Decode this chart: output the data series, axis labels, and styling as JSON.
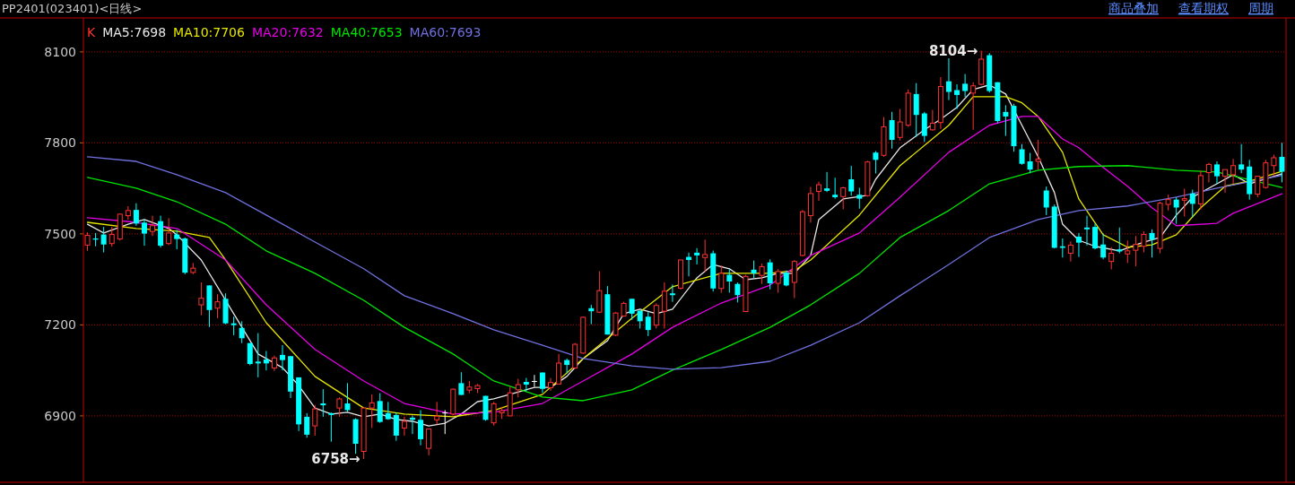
{
  "chart_data": {
    "type": "candlestick",
    "title": "PP2401(023401)<日线>",
    "annotations": [
      "商品叠加",
      "查看期权",
      "周期",
      "8104→",
      "6758→"
    ],
    "categories": [
      null,
      null,
      null,
      null,
      null,
      null,
      null,
      null,
      null,
      null,
      null,
      null,
      null,
      null,
      null,
      null,
      null,
      null,
      null,
      null,
      null,
      null,
      null,
      null,
      null,
      null,
      null,
      null,
      null,
      null,
      null,
      null,
      null,
      null,
      null,
      null,
      null,
      null,
      null,
      null,
      null,
      null,
      null,
      null,
      null,
      null,
      null,
      null,
      null,
      null,
      null,
      null,
      null,
      null,
      null,
      null,
      null,
      null,
      null,
      null,
      null,
      null,
      null,
      null,
      null,
      null,
      null,
      null,
      null,
      null,
      null,
      null,
      null,
      null,
      null,
      null,
      null,
      null,
      null,
      null,
      null,
      null,
      null,
      null,
      null,
      null,
      null,
      null,
      null,
      null,
      null,
      null,
      null,
      null,
      null,
      null,
      null,
      null,
      null,
      null,
      null,
      null,
      null,
      null,
      null,
      null,
      null,
      null,
      null,
      null,
      null,
      null,
      null,
      null,
      null,
      null,
      null,
      null,
      null,
      null,
      null,
      null,
      null,
      null,
      null,
      null,
      null,
      null,
      null,
      null,
      null,
      null,
      null,
      null,
      null,
      null,
      null,
      null,
      null,
      null,
      null,
      null,
      null,
      null,
      null,
      null,
      null,
      null
    ],
    "ylim": [
      6681,
      8206
    ],
    "yticks": [
      6900,
      7200,
      7500,
      7800,
      8100
    ],
    "grid": "y",
    "legend": "top left",
    "series": [
      {
        "name": "K",
        "type": "candlestick",
        "ohlc": [
          [
            7463,
            7505,
            7444,
            7495
          ],
          [
            7485,
            7503,
            7459,
            7481
          ],
          [
            7498,
            7523,
            7439,
            7465
          ],
          [
            7468,
            7523,
            7458,
            7498
          ],
          [
            7483,
            7567,
            7478,
            7565
          ],
          [
            7560,
            7591,
            7547,
            7577
          ],
          [
            7579,
            7601,
            7527,
            7534
          ],
          [
            7537,
            7547,
            7461,
            7501
          ],
          [
            7508,
            7560,
            7493,
            7527
          ],
          [
            7542,
            7560,
            7455,
            7461
          ],
          [
            7468,
            7552,
            7463,
            7503
          ],
          [
            7498,
            7513,
            7449,
            7483
          ],
          [
            7485,
            7488,
            7367,
            7372
          ],
          [
            7373,
            7404,
            7367,
            7387
          ],
          [
            7266,
            7340,
            7232,
            7288
          ],
          [
            7330,
            7330,
            7193,
            7249
          ],
          [
            7255,
            7301,
            7222,
            7276
          ],
          [
            7286,
            7304,
            7202,
            7205
          ],
          [
            7205,
            7227,
            7166,
            7199
          ],
          [
            7190,
            7212,
            7140,
            7156
          ],
          [
            7140,
            7140,
            7067,
            7071
          ],
          [
            7079,
            7173,
            7027,
            7073
          ],
          [
            7086,
            7114,
            7050,
            7073
          ],
          [
            7058,
            7099,
            7048,
            7091
          ],
          [
            7101,
            7133,
            7050,
            7084
          ],
          [
            7097,
            7097,
            6959,
            6980
          ],
          [
            7027,
            7027,
            6850,
            6872
          ],
          [
            6897,
            6909,
            6828,
            6838
          ],
          [
            6867,
            6936,
            6835,
            6923
          ],
          [
            6941,
            6988,
            6897,
            6935
          ],
          [
            6909,
            6911,
            6815,
            6903
          ],
          [
            6926,
            6961,
            6897,
            6956
          ],
          [
            6941,
            7008,
            6913,
            6919
          ],
          [
            6889,
            6892,
            6775,
            6808
          ],
          [
            6783,
            6926,
            6758,
            6926
          ],
          [
            6926,
            6971,
            6860,
            6943
          ],
          [
            6949,
            6975,
            6877,
            6880
          ],
          [
            6909,
            6946,
            6887,
            6889
          ],
          [
            6903,
            6911,
            6818,
            6835
          ],
          [
            6860,
            6897,
            6835,
            6882
          ],
          [
            6894,
            6901,
            6840,
            6887
          ],
          [
            6887,
            6919,
            6803,
            6823
          ],
          [
            6793,
            6857,
            6770,
            6857
          ],
          [
            6887,
            6946,
            6872,
            6899
          ],
          [
            6911,
            6919,
            6840,
            6911
          ],
          [
            6906,
            6990,
            6902,
            6988
          ],
          [
            7008,
            7044,
            6969,
            6969
          ],
          [
            6985,
            7015,
            6975,
            6995
          ],
          [
            6990,
            7005,
            6975,
            7000
          ],
          [
            6966,
            6966,
            6884,
            6887
          ],
          [
            6877,
            6946,
            6868,
            6940
          ],
          [
            6910,
            6930,
            6890,
            6917
          ],
          [
            6900,
            6996,
            6900,
            6976
          ],
          [
            6986,
            7022,
            6961,
            7003
          ],
          [
            7012,
            7025,
            6981,
            7003
          ],
          [
            7015,
            7035,
            6996,
            7015
          ],
          [
            7043,
            7043,
            6976,
            6989
          ],
          [
            6993,
            7025,
            6983,
            7010
          ],
          [
            7005,
            7104,
            7005,
            7074
          ],
          [
            7084,
            7089,
            7040,
            7068
          ],
          [
            7058,
            7140,
            7055,
            7136
          ],
          [
            7107,
            7227,
            7104,
            7225
          ],
          [
            7255,
            7266,
            7202,
            7245
          ],
          [
            7242,
            7377,
            7239,
            7313
          ],
          [
            7301,
            7328,
            7168,
            7168
          ],
          [
            7166,
            7242,
            7163,
            7239
          ],
          [
            7229,
            7276,
            7227,
            7271
          ],
          [
            7286,
            7286,
            7217,
            7237
          ],
          [
            7247,
            7247,
            7188,
            7212
          ],
          [
            7227,
            7242,
            7163,
            7183
          ],
          [
            7199,
            7271,
            7188,
            7264
          ],
          [
            7245,
            7340,
            7188,
            7311
          ],
          [
            7304,
            7333,
            7276,
            7298
          ],
          [
            7321,
            7414,
            7316,
            7414
          ],
          [
            7424,
            7438,
            7360,
            7414
          ],
          [
            7438,
            7453,
            7399,
            7429
          ],
          [
            7422,
            7481,
            7374,
            7432
          ],
          [
            7436,
            7445,
            7310,
            7320
          ],
          [
            7320,
            7396,
            7306,
            7370
          ],
          [
            7365,
            7384,
            7306,
            7343
          ],
          [
            7335,
            7340,
            7274,
            7298
          ],
          [
            7244,
            7365,
            7242,
            7360
          ],
          [
            7382,
            7412,
            7355,
            7370
          ],
          [
            7363,
            7402,
            7335,
            7392
          ],
          [
            7406,
            7416,
            7317,
            7337
          ],
          [
            7337,
            7384,
            7306,
            7376
          ],
          [
            7372,
            7379,
            7327,
            7330
          ],
          [
            7340,
            7414,
            7288,
            7409
          ],
          [
            7429,
            7579,
            7426,
            7573
          ],
          [
            7560,
            7655,
            7537,
            7633
          ],
          [
            7640,
            7672,
            7609,
            7662
          ],
          [
            7650,
            7704,
            7638,
            7642
          ],
          [
            7629,
            7685,
            7616,
            7621
          ],
          [
            7623,
            7655,
            7581,
            7652
          ],
          [
            7680,
            7724,
            7626,
            7640
          ],
          [
            7629,
            7652,
            7583,
            7616
          ],
          [
            7626,
            7741,
            7623,
            7737
          ],
          [
            7768,
            7773,
            7699,
            7744
          ],
          [
            7759,
            7885,
            7754,
            7853
          ],
          [
            7875,
            7902,
            7781,
            7810
          ],
          [
            7818,
            7912,
            7808,
            7869
          ],
          [
            7858,
            7976,
            7853,
            7964
          ],
          [
            7961,
            7997,
            7820,
            7892
          ],
          [
            7897,
            7902,
            7803,
            7823
          ],
          [
            7843,
            7909,
            7840,
            7865
          ],
          [
            7867,
            8017,
            7846,
            7986
          ],
          [
            8003,
            8079,
            7941,
            7968
          ],
          [
            7974,
            7993,
            7912,
            7958
          ],
          [
            7995,
            8027,
            7951,
            7971
          ],
          [
            7964,
            8000,
            7843,
            7988
          ],
          [
            7993,
            8104,
            7990,
            8076
          ],
          [
            8089,
            8096,
            7966,
            7971
          ],
          [
            8000,
            8000,
            7865,
            7872
          ],
          [
            7902,
            7924,
            7823,
            7887
          ],
          [
            7922,
            7929,
            7771,
            7789
          ],
          [
            7779,
            7796,
            7728,
            7731
          ],
          [
            7739,
            7767,
            7700,
            7712
          ],
          [
            7739,
            7810,
            7712,
            7747
          ],
          [
            7643,
            7656,
            7562,
            7587
          ],
          [
            7590,
            7597,
            7452,
            7454
          ],
          [
            7459,
            7485,
            7422,
            7454
          ],
          [
            7436,
            7475,
            7409,
            7463
          ],
          [
            7491,
            7503,
            7424,
            7471
          ],
          [
            7521,
            7560,
            7462,
            7515
          ],
          [
            7523,
            7534,
            7449,
            7452
          ],
          [
            7465,
            7501,
            7416,
            7422
          ],
          [
            7409,
            7456,
            7383,
            7436
          ],
          [
            7449,
            7521,
            7436,
            7442
          ],
          [
            7434,
            7478,
            7404,
            7444
          ],
          [
            7446,
            7493,
            7393,
            7465
          ],
          [
            7459,
            7508,
            7439,
            7498
          ],
          [
            7503,
            7515,
            7422,
            7481
          ],
          [
            7452,
            7606,
            7436,
            7601
          ],
          [
            7597,
            7629,
            7577,
            7613
          ],
          [
            7613,
            7621,
            7533,
            7587
          ],
          [
            7611,
            7649,
            7557,
            7616
          ],
          [
            7633,
            7646,
            7554,
            7599
          ],
          [
            7599,
            7708,
            7580,
            7692
          ],
          [
            7702,
            7734,
            7670,
            7729
          ],
          [
            7729,
            7739,
            7665,
            7690
          ],
          [
            7690,
            7712,
            7636,
            7712
          ],
          [
            7695,
            7747,
            7665,
            7725
          ],
          [
            7729,
            7796,
            7700,
            7712
          ],
          [
            7722,
            7744,
            7613,
            7631
          ],
          [
            7631,
            7690,
            7621,
            7690
          ],
          [
            7653,
            7744,
            7649,
            7734
          ],
          [
            7725,
            7761,
            7690,
            7751
          ],
          [
            7754,
            7800,
            7670,
            7705
          ]
        ],
        "colors": [
          "#ff3232",
          "#00ffff",
          "#00ffff",
          "#ff3232",
          "#ff3232",
          "#ff3232",
          "#00ffff",
          "#00ffff",
          "#ff3232",
          "#00ffff",
          "#ff3232",
          "#00ffff",
          "#00ffff",
          "#ff3232",
          "#ff3232",
          "#00ffff",
          "#ff3232",
          "#00ffff",
          "#00ffff",
          "#00ffff",
          "#00ffff",
          "#00ffff",
          "#00ffff",
          "#ff3232",
          "#00ffff",
          "#00ffff",
          "#00ffff",
          "#00ffff",
          "#ff3232",
          "#00ffff",
          "#00ffff",
          "#ff3232",
          "#00ffff",
          "#00ffff",
          "#ff3232",
          "#ff3232",
          "#00ffff",
          "#00ffff",
          "#00ffff",
          "#ff3232",
          "#00ffff",
          "#00ffff",
          "#ff3232",
          "#ff3232",
          "#ffffff",
          "#ff3232",
          "#00ffff",
          "#ff3232",
          "#ff3232",
          "#00ffff",
          "#ff3232",
          "#ff3232",
          "#ff3232",
          "#ff3232",
          "#00ffff",
          "#ffffff",
          "#00ffff",
          "#ff3232",
          "#ff3232",
          "#00ffff",
          "#ff3232",
          "#ff3232",
          "#00ffff",
          "#ff3232",
          "#00ffff",
          "#ff3232",
          "#ff3232",
          "#00ffff",
          "#00ffff",
          "#00ffff",
          "#ff3232",
          "#ff3232",
          "#00ffff",
          "#ff3232",
          "#00ffff",
          "#00ffff",
          "#ff3232",
          "#00ffff",
          "#ff3232",
          "#00ffff",
          "#00ffff",
          "#ff3232",
          "#00ffff",
          "#ff3232",
          "#00ffff",
          "#ff3232",
          "#00ffff",
          "#ff3232",
          "#ff3232",
          "#ff3232",
          "#ff3232",
          "#00ffff",
          "#00ffff",
          "#ff3232",
          "#00ffff",
          "#00ffff",
          "#ff3232",
          "#00ffff",
          "#ff3232",
          "#00ffff",
          "#ff3232",
          "#ff3232",
          "#00ffff",
          "#00ffff",
          "#ff3232",
          "#ff3232",
          "#00ffff",
          "#00ffff",
          "#00ffff",
          "#ff3232",
          "#ff3232",
          "#00ffff",
          "#00ffff",
          "#00ffff",
          "#00ffff",
          "#00ffff",
          "#00ffff",
          "#ff3232",
          "#00ffff",
          "#00ffff",
          "#00ffff",
          "#ff3232",
          "#00ffff",
          "#00ffff",
          "#00ffff",
          "#00ffff",
          "#ff3232",
          "#00ffff",
          "#ff3232",
          "#ff3232",
          "#ff3232",
          "#00ffff",
          "#ff3232",
          "#ff3232",
          "#00ffff",
          "#ff3232",
          "#00ffff",
          "#ff3232",
          "#ff3232",
          "#00ffff",
          "#ff3232",
          "#ff3232",
          "#00ffff",
          "#00ffff",
          "#ff3232",
          "#ff3232",
          "#ff3232",
          "#00ffff"
        ]
      },
      {
        "name": "MA5:7698",
        "type": "line",
        "color": "#e8e8e8",
        "values": [
          7532,
          null,
          7503,
          null,
          null,
          7532,
          null,
          7547,
          null,
          null,
          7518,
          7497,
          null,
          null,
          7414,
          null,
          null,
          null,
          null,
          null,
          null,
          7104,
          null,
          null,
          7059,
          null,
          7000,
          null,
          6926,
          null,
          6906,
          null,
          6912,
          null,
          6897,
          null,
          6906,
          null,
          6888,
          null,
          6882,
          null,
          6867,
          null,
          6876,
          null,
          6906,
          null,
          6947,
          null,
          6956,
          null,
          6971,
          null,
          null,
          6994,
          null,
          6994,
          null,
          7030,
          null,
          7089,
          null,
          null,
          7148,
          null,
          7237,
          null,
          7252,
          null,
          7237,
          null,
          7252,
          null,
          null,
          7355,
          null,
          7399,
          null,
          7385,
          null,
          7349,
          null,
          7355,
          null,
          7370,
          null,
          7370,
          null,
          7429,
          7547,
          null,
          null,
          7615,
          null,
          null,
          7627,
          7680,
          null,
          null,
          7784,
          null,
          null,
          7843,
          null,
          7878,
          null,
          7917,
          null,
          7976,
          null,
          7991,
          null,
          7961,
          null,
          7858,
          null,
          7754,
          null,
          7636,
          7532,
          null,
          7479,
          null,
          7459,
          null,
          null,
          7444,
          null,
          null,
          7473,
          null,
          7488,
          null,
          7562,
          null,
          7621,
          null,
          null,
          7665,
          null,
          7695,
          null,
          7665,
          null,
          null,
          null,
          7698
        ]
      },
      {
        "name": "MA10:7706",
        "type": "line",
        "color": "#e6e600",
        "values": [
          7538,
          null,
          null,
          null,
          null,
          null,
          7518,
          null,
          null,
          null,
          null,
          7509,
          null,
          null,
          null,
          7488,
          null,
          7414,
          null,
          null,
          null,
          null,
          7207,
          null,
          null,
          null,
          null,
          null,
          7030,
          null,
          null,
          null,
          null,
          null,
          6926,
          null,
          null,
          null,
          null,
          6906,
          null,
          null,
          null,
          null,
          null,
          6897,
          null,
          null,
          null,
          null,
          6918,
          null,
          null,
          null,
          null,
          null,
          6971,
          null,
          null,
          null,
          null,
          7089,
          null,
          null,
          null,
          null,
          null,
          7222,
          null,
          null,
          null,
          null,
          7326,
          null,
          null,
          null,
          null,
          null,
          7370,
          null,
          null,
          null,
          null,
          null,
          7370,
          null,
          null,
          7379,
          null,
          7414,
          null,
          null,
          null,
          null,
          null,
          7562,
          null,
          null,
          null,
          null,
          7725,
          null,
          null,
          null,
          null,
          null,
          7858,
          null,
          null,
          7952,
          null,
          null,
          null,
          7952,
          null,
          7932,
          null,
          7887,
          null,
          null,
          7769,
          null,
          7615,
          null,
          null,
          7497,
          null,
          null,
          7456,
          null,
          null,
          7464,
          null,
          null,
          7497,
          null,
          null,
          7586,
          null,
          null,
          7657,
          null,
          null,
          7674,
          null,
          null,
          null,
          7706
        ]
      },
      {
        "name": "MA20:7632",
        "type": "line",
        "color": "#e600e6",
        "values": [
          7553,
          null,
          null,
          null,
          null,
          null,
          7538,
          null,
          null,
          null,
          null,
          7518,
          null,
          null,
          null,
          null,
          null,
          7414,
          null,
          null,
          null,
          null,
          7266,
          null,
          null,
          null,
          null,
          null,
          7119,
          null,
          null,
          null,
          null,
          null,
          7015,
          null,
          null,
          null,
          null,
          6941,
          null,
          null,
          null,
          null,
          null,
          6906,
          null,
          null,
          null,
          null,
          6912,
          null,
          null,
          null,
          null,
          null,
          6941,
          null,
          null,
          null,
          null,
          7015,
          null,
          null,
          null,
          null,
          null,
          7104,
          null,
          null,
          null,
          null,
          7192,
          null,
          null,
          null,
          null,
          null,
          7272,
          null,
          null,
          null,
          null,
          null,
          7331,
          null,
          null,
          null,
          null,
          7429,
          null,
          null,
          null,
          null,
          null,
          7503,
          null,
          null,
          null,
          null,
          7621,
          null,
          null,
          null,
          null,
          null,
          7769,
          null,
          null,
          null,
          null,
          7858,
          null,
          null,
          null,
          7887,
          null,
          7887,
          null,
          null,
          7813,
          null,
          7784,
          null,
          7740,
          null,
          null,
          null,
          7657,
          null,
          null,
          7586,
          null,
          null,
          7527,
          null,
          null,
          null,
          null,
          7535,
          null,
          7568,
          null,
          null,
          null,
          null,
          null,
          7632
        ]
      },
      {
        "name": "MA40:7653",
        "type": "line",
        "color": "#00e600",
        "values": [
          7686,
          null,
          null,
          null,
          null,
          null,
          7651,
          null,
          null,
          null,
          null,
          7606,
          null,
          null,
          null,
          null,
          null,
          7532,
          null,
          null,
          null,
          null,
          7444,
          null,
          null,
          null,
          null,
          null,
          7370,
          null,
          null,
          null,
          null,
          null,
          7281,
          null,
          null,
          null,
          null,
          7192,
          null,
          null,
          null,
          null,
          null,
          7104,
          null,
          null,
          null,
          null,
          7015,
          null,
          null,
          null,
          null,
          null,
          6962,
          null,
          null,
          null,
          null,
          6950,
          null,
          null,
          null,
          null,
          null,
          6986,
          null,
          null,
          null,
          null,
          7051,
          null,
          null,
          null,
          null,
          null,
          7119,
          null,
          null,
          null,
          null,
          null,
          7192,
          null,
          null,
          null,
          null,
          7266,
          null,
          null,
          null,
          null,
          null,
          7370,
          null,
          null,
          null,
          null,
          7488,
          null,
          null,
          null,
          null,
          null,
          7577,
          null,
          null,
          null,
          null,
          7665,
          null,
          null,
          null,
          null,
          null,
          7710,
          null,
          null,
          null,
          null,
          7722,
          null,
          null,
          null,
          null,
          null,
          7725,
          null,
          null,
          null,
          null,
          null,
          7710,
          null,
          null,
          null,
          null,
          7704,
          null,
          null,
          null,
          null,
          null,
          null,
          null,
          7653
        ]
      },
      {
        "name": "MA60:7693",
        "type": "line",
        "color": "#7070e0",
        "values": [
          7754,
          null,
          null,
          null,
          null,
          null,
          7739,
          null,
          null,
          null,
          null,
          7695,
          null,
          null,
          null,
          null,
          null,
          7636,
          null,
          null,
          null,
          null,
          7562,
          null,
          null,
          null,
          null,
          null,
          7473,
          null,
          null,
          null,
          null,
          null,
          7385,
          null,
          null,
          null,
          null,
          7296,
          null,
          null,
          null,
          null,
          null,
          7237,
          null,
          null,
          null,
          null,
          7184,
          null,
          null,
          null,
          null,
          null,
          7133,
          null,
          null,
          null,
          null,
          7089,
          null,
          null,
          null,
          null,
          null,
          7065,
          null,
          null,
          null,
          null,
          7054,
          null,
          null,
          null,
          null,
          null,
          7059,
          null,
          null,
          null,
          null,
          null,
          7080,
          null,
          null,
          null,
          null,
          7133,
          null,
          null,
          null,
          null,
          null,
          7207,
          null,
          null,
          null,
          null,
          7296,
          null,
          null,
          null,
          null,
          null,
          7399,
          null,
          null,
          null,
          null,
          7488,
          null,
          null,
          null,
          null,
          null,
          7547,
          null,
          null,
          null,
          null,
          7577,
          null,
          null,
          null,
          null,
          null,
          7592,
          null,
          null,
          null,
          null,
          null,
          7621,
          null,
          null,
          null,
          null,
          7651,
          null,
          null,
          null,
          null,
          null,
          null,
          null,
          7693
        ]
      }
    ]
  }
}
